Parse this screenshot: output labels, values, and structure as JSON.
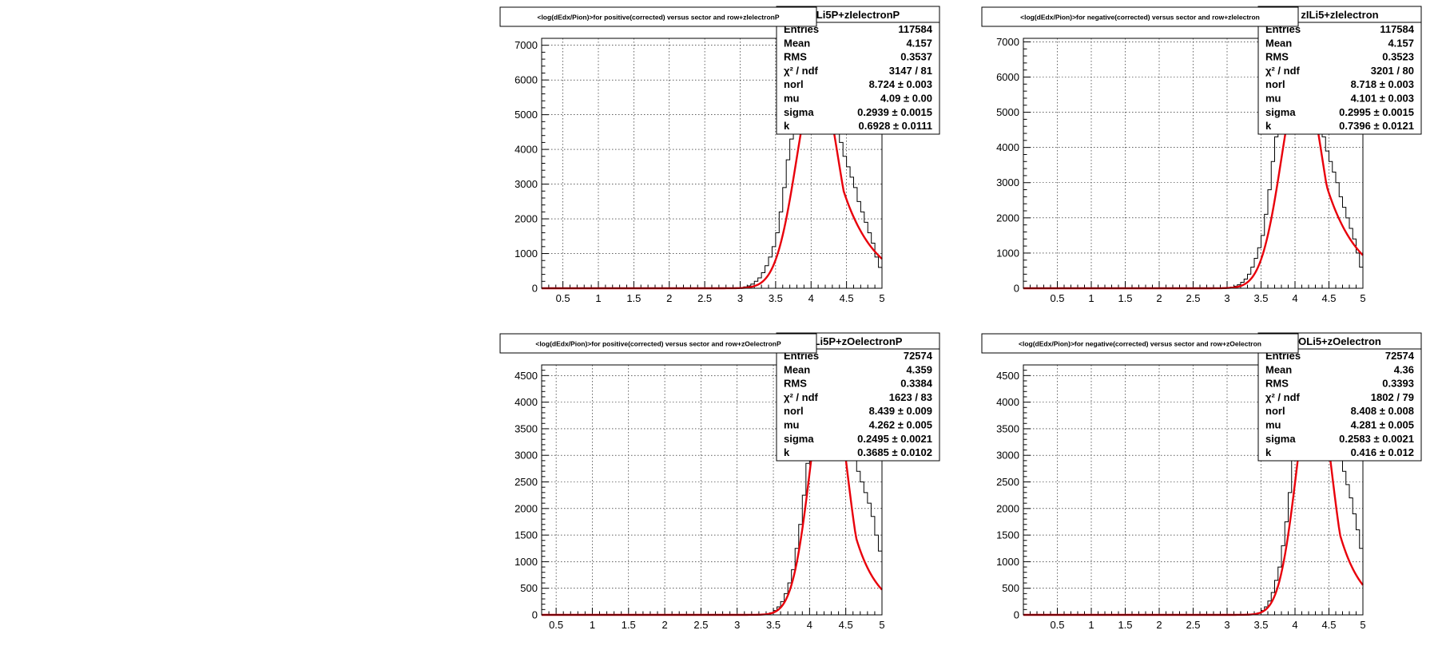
{
  "chart_data": [
    {
      "type": "histogram",
      "title": "<log(dEdx/Pion)>for positive(corrected) versus sector and row+zIelectronP",
      "stats_title": "Li5P+zIelectronP",
      "xlim": [
        0.2,
        5
      ],
      "ylim": [
        0,
        7200
      ],
      "xticks": [
        0.5,
        1,
        1.5,
        2,
        2.5,
        3,
        3.5,
        4,
        4.5,
        5
      ],
      "xtick_labels": [
        "0.5",
        "1",
        "1.5",
        "2",
        "2.5",
        "3",
        "3.5",
        "4",
        "4.5",
        "5"
      ],
      "yticks": [
        0,
        1000,
        2000,
        3000,
        4000,
        5000,
        6000,
        7000
      ],
      "ytick_labels": [
        "0",
        "1000",
        "2000",
        "3000",
        "4000",
        "5000",
        "6000",
        "7000"
      ],
      "grid": true,
      "histogram": {
        "x": [
          3.0,
          3.05,
          3.1,
          3.15,
          3.2,
          3.25,
          3.3,
          3.35,
          3.4,
          3.45,
          3.5,
          3.55,
          3.6,
          3.65,
          3.7,
          3.75,
          3.8,
          4.4,
          4.45,
          4.5,
          4.55,
          4.6,
          4.65,
          4.7,
          4.75,
          4.8,
          4.85,
          4.9,
          4.95
        ],
        "y": [
          20,
          40,
          70,
          120,
          200,
          300,
          450,
          650,
          900,
          1200,
          1600,
          2200,
          2900,
          3700,
          4300,
          5200,
          6000,
          4200,
          3800,
          3500,
          3200,
          2900,
          2500,
          2200,
          1900,
          1600,
          1300,
          900,
          600
        ]
      },
      "fit": {
        "norl": 8.724,
        "mu": 4.09,
        "sigma": 0.2939,
        "k": 0.6928
      },
      "stats": [
        {
          "name": "Entries",
          "value": "117584"
        },
        {
          "name": "Mean",
          "value": "4.157"
        },
        {
          "name": "RMS",
          "value": "0.3537"
        },
        {
          "name": "χ² / ndf",
          "value": "3147 / 81"
        },
        {
          "name": "norl",
          "value": "8.724 ± 0.003"
        },
        {
          "name": "mu",
          "value": "4.09 ± 0.00"
        },
        {
          "name": "sigma",
          "value": "0.2939 ± 0.0015"
        },
        {
          "name": "k",
          "value": "0.6928 ± 0.0111"
        }
      ]
    },
    {
      "type": "histogram",
      "title": "<log(dEdx/Pion)>for negative(corrected) versus sector and row+zIelectron",
      "stats_title": "zILi5+zIelectron",
      "xlim": [
        0.0,
        5
      ],
      "ylim": [
        0,
        7100
      ],
      "xticks": [
        0.5,
        1,
        1.5,
        2,
        2.5,
        3,
        3.5,
        4,
        4.5,
        5
      ],
      "xtick_labels": [
        "0.5",
        "1",
        "1.5",
        "2",
        "2.5",
        "3",
        "3.5",
        "4",
        "4.5",
        "5"
      ],
      "yticks": [
        0,
        1000,
        2000,
        3000,
        4000,
        5000,
        6000,
        7000
      ],
      "ytick_labels": [
        "0",
        "1000",
        "2000",
        "3000",
        "4000",
        "5000",
        "6000",
        "7000"
      ],
      "grid": true,
      "histogram": {
        "x": [
          3.0,
          3.05,
          3.1,
          3.15,
          3.2,
          3.25,
          3.3,
          3.35,
          3.4,
          3.45,
          3.5,
          3.55,
          3.6,
          3.65,
          3.7,
          3.75,
          3.8,
          4.4,
          4.45,
          4.5,
          4.55,
          4.6,
          4.65,
          4.7,
          4.75,
          4.8,
          4.85,
          4.9,
          4.95
        ],
        "y": [
          20,
          35,
          60,
          100,
          170,
          260,
          400,
          600,
          850,
          1150,
          1500,
          2100,
          2800,
          3600,
          4300,
          5100,
          5900,
          4300,
          3900,
          3600,
          3300,
          3000,
          2600,
          2300,
          2000,
          1700,
          1400,
          1000,
          600
        ]
      },
      "fit": {
        "norl": 8.718,
        "mu": 4.101,
        "sigma": 0.2995,
        "k": 0.7396
      },
      "stats": [
        {
          "name": "Entries",
          "value": "117584"
        },
        {
          "name": "Mean",
          "value": "4.157"
        },
        {
          "name": "RMS",
          "value": "0.3523"
        },
        {
          "name": "χ² / ndf",
          "value": "3201 / 80"
        },
        {
          "name": "norl",
          "value": "8.718 ± 0.003"
        },
        {
          "name": "mu",
          "value": "4.101 ± 0.003"
        },
        {
          "name": "sigma",
          "value": "0.2995 ± 0.0015"
        },
        {
          "name": "k",
          "value": "0.7396 ± 0.0121"
        }
      ]
    },
    {
      "type": "histogram",
      "title": "<log(dEdx/Pion)>for positive(corrected) versus sector and row+zOelectronP",
      "stats_title": "Li5P+zOelectronP",
      "xlim": [
        0.3,
        5
      ],
      "ylim": [
        0,
        4700
      ],
      "xticks": [
        0.5,
        1,
        1.5,
        2,
        2.5,
        3,
        3.5,
        4,
        4.5,
        5
      ],
      "xtick_labels": [
        "0.5",
        "1",
        "1.5",
        "2",
        "2.5",
        "3",
        "3.5",
        "4",
        "4.5",
        "5"
      ],
      "yticks": [
        0,
        500,
        1000,
        1500,
        2000,
        2500,
        3000,
        3500,
        4000,
        4500
      ],
      "ytick_labels": [
        "0",
        "500",
        "1000",
        "1500",
        "2000",
        "2500",
        "3000",
        "3500",
        "4000",
        "4500"
      ],
      "grid": true,
      "histogram": {
        "x": [
          3.4,
          3.45,
          3.5,
          3.55,
          3.6,
          3.65,
          3.7,
          3.75,
          3.8,
          3.85,
          3.9,
          3.95,
          4.0,
          4.6,
          4.65,
          4.7,
          4.75,
          4.8,
          4.85,
          4.9,
          4.95
        ],
        "y": [
          20,
          40,
          80,
          150,
          250,
          400,
          600,
          850,
          1250,
          1700,
          2250,
          2850,
          3600,
          3000,
          2700,
          2500,
          2300,
          2100,
          1850,
          1500,
          1200
        ]
      },
      "fit": {
        "norl": 8.439,
        "mu": 4.262,
        "sigma": 0.2495,
        "k": 0.3685
      },
      "stats": [
        {
          "name": "Entries",
          "value": "72574"
        },
        {
          "name": "Mean",
          "value": "4.359"
        },
        {
          "name": "RMS",
          "value": "0.3384"
        },
        {
          "name": "χ² / ndf",
          "value": "1623 / 83"
        },
        {
          "name": "norl",
          "value": "8.439 ± 0.009"
        },
        {
          "name": "mu",
          "value": "4.262 ± 0.005"
        },
        {
          "name": "sigma",
          "value": "0.2495 ± 0.0021"
        },
        {
          "name": "k",
          "value": "0.3685 ± 0.0102"
        }
      ]
    },
    {
      "type": "histogram",
      "title": "<log(dEdx/Pion)>for negative(corrected) versus sector and row+zOelectron",
      "stats_title": "OLi5+zOelectron",
      "xlim": [
        0.0,
        5
      ],
      "ylim": [
        0,
        4700
      ],
      "xticks": [
        0.5,
        1,
        1.5,
        2,
        2.5,
        3,
        3.5,
        4,
        4.5,
        5
      ],
      "xtick_labels": [
        "0.5",
        "1",
        "1.5",
        "2",
        "2.5",
        "3",
        "3.5",
        "4",
        "4.5",
        "5"
      ],
      "yticks": [
        0,
        500,
        1000,
        1500,
        2000,
        2500,
        3000,
        3500,
        4000,
        4500
      ],
      "ytick_labels": [
        "0",
        "500",
        "1000",
        "1500",
        "2000",
        "2500",
        "3000",
        "3500",
        "4000",
        "4500"
      ],
      "grid": true,
      "histogram": {
        "x": [
          3.4,
          3.45,
          3.5,
          3.55,
          3.6,
          3.65,
          3.7,
          3.75,
          3.8,
          3.85,
          3.9,
          3.95,
          4.0,
          4.6,
          4.65,
          4.7,
          4.75,
          4.8,
          4.85,
          4.9,
          4.95
        ],
        "y": [
          20,
          40,
          80,
          150,
          260,
          420,
          650,
          900,
          1300,
          1750,
          2300,
          2900,
          3600,
          3300,
          2950,
          2700,
          2450,
          2200,
          1900,
          1600,
          1250
        ]
      },
      "fit": {
        "norl": 8.408,
        "mu": 4.281,
        "sigma": 0.2583,
        "k": 0.416
      },
      "stats": [
        {
          "name": "Entries",
          "value": "72574"
        },
        {
          "name": "Mean",
          "value": "4.36"
        },
        {
          "name": "RMS",
          "value": "0.3393"
        },
        {
          "name": "χ² / ndf",
          "value": "1802 / 79"
        },
        {
          "name": "norl",
          "value": "8.408 ± 0.008"
        },
        {
          "name": "mu",
          "value": "4.281 ± 0.005"
        },
        {
          "name": "sigma",
          "value": "0.2583 ± 0.0021"
        },
        {
          "name": "k",
          "value": "0.416 ± 0.012"
        }
      ]
    }
  ],
  "colors": {
    "fit": "#e8000b",
    "histogram": "#000000",
    "frame": "#000000",
    "background": "#ffffff"
  }
}
